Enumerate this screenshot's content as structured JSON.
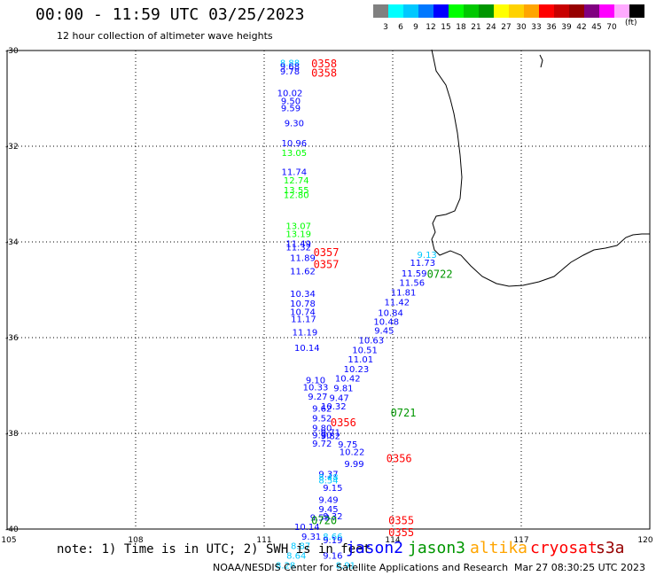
{
  "header": {
    "title": "00:00 - 11:59 UTC 03/25/2023",
    "subtitle": "12 hour collection of altimeter wave heights"
  },
  "legend": {
    "unit": "(ft)",
    "items": [
      {
        "color": "#808080",
        "label": ""
      },
      {
        "color": "#00ffff",
        "label": "3"
      },
      {
        "color": "#00c8ff",
        "label": "6"
      },
      {
        "color": "#0078ff",
        "label": "9"
      },
      {
        "color": "#0000ff",
        "label": "12"
      },
      {
        "color": "#00ff00",
        "label": "15"
      },
      {
        "color": "#00c800",
        "label": "18"
      },
      {
        "color": "#009600",
        "label": "21"
      },
      {
        "color": "#ffff00",
        "label": "24"
      },
      {
        "color": "#ffd200",
        "label": "27"
      },
      {
        "color": "#ffa500",
        "label": "30"
      },
      {
        "color": "#ff0000",
        "label": "33"
      },
      {
        "color": "#c80000",
        "label": "36"
      },
      {
        "color": "#960000",
        "label": "39"
      },
      {
        "color": "#800080",
        "label": "42"
      },
      {
        "color": "#ff00ff",
        "label": "45"
      },
      {
        "color": "#ffaaff",
        "label": "70"
      },
      {
        "color": "#000000",
        "label": ""
      }
    ]
  },
  "axes": {
    "lon_labels": [
      "105",
      "108",
      "111",
      "114",
      "117",
      "120"
    ],
    "lat_labels": [
      "-30",
      "-32",
      "-34",
      "-36",
      "-38",
      "-40"
    ]
  },
  "map_data": {
    "lon_range": [
      105,
      120
    ],
    "lat_range": [
      -40,
      -30
    ],
    "obs": [
      {
        "lon": 111.6,
        "lat": -30.32,
        "text": "8.88",
        "color": "#00c8ff"
      },
      {
        "lon": 111.6,
        "lat": -30.4,
        "text": "9.68",
        "color": "#0000ff"
      },
      {
        "lon": 111.6,
        "lat": -30.5,
        "text": "9.78",
        "color": "#0000ff"
      },
      {
        "lon": 111.6,
        "lat": -30.95,
        "text": "10.02",
        "color": "#0000ff"
      },
      {
        "lon": 111.62,
        "lat": -31.12,
        "text": "9.50",
        "color": "#0000ff"
      },
      {
        "lon": 111.62,
        "lat": -31.27,
        "text": "9.59",
        "color": "#0000ff"
      },
      {
        "lon": 111.7,
        "lat": -31.58,
        "text": "9.30",
        "color": "#0000ff"
      },
      {
        "lon": 111.7,
        "lat": -32.0,
        "text": "10.96",
        "color": "#0000ff"
      },
      {
        "lon": 111.7,
        "lat": -32.2,
        "text": "13.05",
        "color": "#00ff00"
      },
      {
        "lon": 111.7,
        "lat": -32.6,
        "text": "11.74",
        "color": "#0000ff"
      },
      {
        "lon": 111.75,
        "lat": -32.78,
        "text": "12.74",
        "color": "#00ff00"
      },
      {
        "lon": 111.75,
        "lat": -32.98,
        "text": "13.55",
        "color": "#00ff00"
      },
      {
        "lon": 111.75,
        "lat": -33.08,
        "text": "12.80",
        "color": "#00ff00"
      },
      {
        "lon": 111.8,
        "lat": -33.73,
        "text": "13.07",
        "color": "#00ff00"
      },
      {
        "lon": 111.8,
        "lat": -33.9,
        "text": "13.19",
        "color": "#00ff00"
      },
      {
        "lon": 111.8,
        "lat": -34.1,
        "text": "11.49",
        "color": "#0000ff"
      },
      {
        "lon": 111.8,
        "lat": -34.18,
        "text": "11.32",
        "color": "#0000ff"
      },
      {
        "lon": 111.9,
        "lat": -34.4,
        "text": "11.89",
        "color": "#0000ff"
      },
      {
        "lon": 111.9,
        "lat": -34.68,
        "text": "11.62",
        "color": "#0000ff"
      },
      {
        "lon": 111.9,
        "lat": -35.15,
        "text": "10.34",
        "color": "#0000ff"
      },
      {
        "lon": 111.9,
        "lat": -35.35,
        "text": "10.78",
        "color": "#0000ff"
      },
      {
        "lon": 111.9,
        "lat": -35.53,
        "text": "10.74",
        "color": "#0000ff"
      },
      {
        "lon": 111.92,
        "lat": -35.68,
        "text": "11.17",
        "color": "#0000ff"
      },
      {
        "lon": 111.95,
        "lat": -35.95,
        "text": "11.19",
        "color": "#0000ff"
      },
      {
        "lon": 112.0,
        "lat": -36.28,
        "text": "10.14",
        "color": "#0000ff"
      },
      {
        "lon": 112.2,
        "lat": -36.95,
        "text": "9.10",
        "color": "#0000ff"
      },
      {
        "lon": 112.2,
        "lat": -37.1,
        "text": "10.33",
        "color": "#0000ff"
      },
      {
        "lon": 112.25,
        "lat": -37.3,
        "text": "9.27",
        "color": "#0000ff"
      },
      {
        "lon": 112.35,
        "lat": -37.55,
        "text": "9.62",
        "color": "#0000ff"
      },
      {
        "lon": 112.35,
        "lat": -37.75,
        "text": "9.52",
        "color": "#0000ff"
      },
      {
        "lon": 112.35,
        "lat": -37.95,
        "text": "9.80",
        "color": "#0000ff"
      },
      {
        "lon": 112.35,
        "lat": -38.1,
        "text": "9.90",
        "color": "#0000ff"
      },
      {
        "lon": 112.35,
        "lat": -38.28,
        "text": "9.72",
        "color": "#0000ff"
      },
      {
        "lon": 112.55,
        "lat": -38.05,
        "text": "9.71",
        "color": "#0000ff"
      },
      {
        "lon": 112.55,
        "lat": -38.12,
        "text": "9.82",
        "color": "#0000ff"
      },
      {
        "lon": 112.95,
        "lat": -38.3,
        "text": "9.75",
        "color": "#0000ff"
      },
      {
        "lon": 113.05,
        "lat": -38.45,
        "text": "10.22",
        "color": "#0000ff"
      },
      {
        "lon": 113.1,
        "lat": -38.7,
        "text": "9.99",
        "color": "#0000ff"
      },
      {
        "lon": 112.5,
        "lat": -38.92,
        "text": "9.37",
        "color": "#0000ff"
      },
      {
        "lon": 112.5,
        "lat": -38.98,
        "text": "8.48",
        "color": "#00c8ff"
      },
      {
        "lon": 112.5,
        "lat": -39.05,
        "text": "8.54",
        "color": "#00c8ff"
      },
      {
        "lon": 112.6,
        "lat": -39.2,
        "text": "9.15",
        "color": "#0000ff"
      },
      {
        "lon": 112.5,
        "lat": -39.45,
        "text": "9.49",
        "color": "#0000ff"
      },
      {
        "lon": 112.5,
        "lat": -39.65,
        "text": "9.45",
        "color": "#0000ff"
      },
      {
        "lon": 112.6,
        "lat": -39.8,
        "text": "9.32",
        "color": "#0000ff"
      },
      {
        "lon": 112.3,
        "lat": -39.82,
        "text": "9.59",
        "color": "#0000ff"
      },
      {
        "lon": 112.0,
        "lat": -40.02,
        "text": "10.14",
        "color": "#0000ff"
      },
      {
        "lon": 112.1,
        "lat": -40.22,
        "text": "9.31",
        "color": "#0000ff"
      },
      {
        "lon": 112.6,
        "lat": -40.22,
        "text": "8.66",
        "color": "#00c8ff"
      },
      {
        "lon": 112.6,
        "lat": -40.3,
        "text": "9.19",
        "color": "#0000ff"
      },
      {
        "lon": 111.85,
        "lat": -40.42,
        "text": "8.87",
        "color": "#00c8ff"
      },
      {
        "lon": 111.75,
        "lat": -40.62,
        "text": "8.64",
        "color": "#00c8ff"
      },
      {
        "lon": 112.6,
        "lat": -40.62,
        "text": "9.16",
        "color": "#0000ff"
      },
      {
        "lon": 111.5,
        "lat": -40.82,
        "text": "8.28",
        "color": "#00c8ff"
      },
      {
        "lon": 112.9,
        "lat": -40.82,
        "text": "8.91",
        "color": "#00c8ff"
      },
      {
        "lon": 114.8,
        "lat": -34.33,
        "text": "9.13",
        "color": "#00c8ff"
      },
      {
        "lon": 114.7,
        "lat": -34.5,
        "text": "11.73",
        "color": "#0000ff"
      },
      {
        "lon": 114.5,
        "lat": -34.72,
        "text": "11.59",
        "color": "#0000ff"
      },
      {
        "lon": 114.45,
        "lat": -34.92,
        "text": "11.56",
        "color": "#0000ff"
      },
      {
        "lon": 114.25,
        "lat": -35.12,
        "text": "11.81",
        "color": "#0000ff"
      },
      {
        "lon": 114.1,
        "lat": -35.32,
        "text": "11.42",
        "color": "#0000ff"
      },
      {
        "lon": 113.95,
        "lat": -35.55,
        "text": "10.84",
        "color": "#0000ff"
      },
      {
        "lon": 113.85,
        "lat": -35.73,
        "text": "10.48",
        "color": "#0000ff"
      },
      {
        "lon": 113.8,
        "lat": -35.92,
        "text": "9.45",
        "color": "#0000ff"
      },
      {
        "lon": 113.5,
        "lat": -36.12,
        "text": "10.63",
        "color": "#0000ff"
      },
      {
        "lon": 113.35,
        "lat": -36.32,
        "text": "10.51",
        "color": "#0000ff"
      },
      {
        "lon": 113.25,
        "lat": -36.52,
        "text": "11.01",
        "color": "#0000ff"
      },
      {
        "lon": 113.15,
        "lat": -36.72,
        "text": "10.23",
        "color": "#0000ff"
      },
      {
        "lon": 112.95,
        "lat": -36.92,
        "text": "10.42",
        "color": "#0000ff"
      },
      {
        "lon": 112.85,
        "lat": -37.12,
        "text": "9.81",
        "color": "#0000ff"
      },
      {
        "lon": 112.75,
        "lat": -37.32,
        "text": "9.47",
        "color": "#0000ff"
      },
      {
        "lon": 112.62,
        "lat": -37.5,
        "text": "10.32",
        "color": "#0000ff"
      }
    ],
    "times": [
      {
        "lon": 112.1,
        "lat": -30.35,
        "text": "0358",
        "color": "#ff0000"
      },
      {
        "lon": 112.1,
        "lat": -30.55,
        "text": "0358",
        "color": "#ff0000"
      },
      {
        "lon": 112.15,
        "lat": -34.3,
        "text": "0357",
        "color": "#ff0000"
      },
      {
        "lon": 112.15,
        "lat": -34.55,
        "text": "0357",
        "color": "#ff0000"
      },
      {
        "lon": 112.55,
        "lat": -37.85,
        "text": "0356",
        "color": "#ff0000"
      },
      {
        "lon": 113.85,
        "lat": -38.6,
        "text": "0356",
        "color": "#ff0000"
      },
      {
        "lon": 113.9,
        "lat": -39.9,
        "text": "0355",
        "color": "#ff0000"
      },
      {
        "lon": 113.9,
        "lat": -40.15,
        "text": "0355",
        "color": "#ff0000"
      },
      {
        "lon": 114.8,
        "lat": -34.75,
        "text": "0722",
        "color": "#009600"
      },
      {
        "lon": 113.95,
        "lat": -37.65,
        "text": "0721",
        "color": "#009600"
      },
      {
        "lon": 112.1,
        "lat": -39.9,
        "text": "0720",
        "color": "#009600"
      }
    ]
  },
  "footer": {
    "note": "note: 1) Time is in UTC; 2) SWH is in feet",
    "satellites": [
      {
        "name": "jason2",
        "color": "#0000ff"
      },
      {
        "name": "jason3",
        "color": "#009600"
      },
      {
        "name": "altika",
        "color": "#ffa500"
      },
      {
        "name": "cryosat",
        "color": "#ff0000"
      },
      {
        "name": "s3a",
        "color": "#960000"
      }
    ],
    "credit": "NOAA/NESDIS Center for Satellite Applications and Research",
    "timestamp": "Mar 27 08:30:25 UTC 2023"
  }
}
